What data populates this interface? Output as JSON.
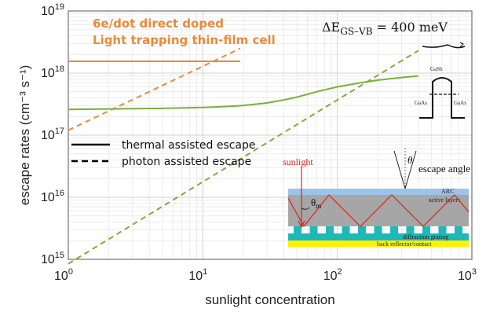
{
  "chart_data": {
    "type": "line",
    "xlabel": "sunlight concentration",
    "ylabel": "escape rates (cm⁻³ s⁻¹)",
    "xscale": "log",
    "yscale": "log",
    "xlim": [
      1,
      1000
    ],
    "ylim": [
      1000000000000000.0,
      1e+19
    ],
    "x_ticks": [
      1,
      10,
      100,
      1000
    ],
    "y_ticks": [
      1000000000000000.0,
      1e+16,
      1e+17,
      1e+18,
      1e+19
    ],
    "x_tick_labels": [
      {
        "base": "10",
        "exp": "0"
      },
      {
        "base": "10",
        "exp": "1"
      },
      {
        "base": "10",
        "exp": "2"
      },
      {
        "base": "10",
        "exp": "3"
      }
    ],
    "y_tick_labels": [
      {
        "base": "10",
        "exp": "15"
      },
      {
        "base": "10",
        "exp": "16"
      },
      {
        "base": "10",
        "exp": "17"
      },
      {
        "base": "10",
        "exp": "18"
      },
      {
        "base": "10",
        "exp": "19"
      }
    ],
    "grid": true,
    "series": [
      {
        "style": "solid",
        "color": "#E98A3A",
        "x": [
          1,
          19
        ],
        "y": [
          1.55e+18,
          1.55e+18
        ]
      },
      {
        "style": "dashed",
        "color": "#E98A3A",
        "x": [
          1,
          19
        ],
        "y": [
          1.2e+17,
          2.5e+18
        ]
      },
      {
        "style": "solid",
        "color": "#7DAF3A",
        "x": [
          1,
          2,
          5,
          10,
          15,
          20,
          30,
          40,
          50,
          70,
          100,
          150,
          200,
          300,
          400
        ],
        "y": [
          2.6e+17,
          2.65e+17,
          2.7e+17,
          2.8e+17,
          2.9e+17,
          3e+17,
          3.3e+17,
          3.7e+17,
          4.1e+17,
          5e+17,
          6e+17,
          7e+17,
          7.7e+17,
          8.5e+17,
          9e+17
        ]
      },
      {
        "style": "dashed",
        "color": "#7DAF3A",
        "x": [
          1,
          400
        ],
        "y": [
          850000000000000.0,
          2.3e+18
        ]
      }
    ],
    "legend": {
      "placement": "left-middle",
      "entries": [
        {
          "label": "thermal assisted escape",
          "style": "solid"
        },
        {
          "label": "photon assisted escape",
          "style": "dashed"
        }
      ]
    },
    "annotations": {
      "line1": "6e/dot direct doped",
      "line2": "Light trapping thin-film cell",
      "energy_main": "ΔE",
      "energy_sub": "GS–VB",
      "energy_rest": " = 400 meV"
    },
    "inset_band": {
      "labels": [
        "GaSb",
        "GaAs",
        "GaAs"
      ]
    },
    "inset_cell": {
      "sunlight": "sunlight",
      "theta_m": "θ",
      "theta_m_sub": "m",
      "theta": "θ",
      "escape_angle": "escape angle",
      "layers": [
        "ARC",
        "active layers",
        "diffraction grating",
        "back reflector/contact"
      ],
      "colors": {
        "arc": "#9DC3E6",
        "active": "#A6A6A6",
        "grating": "#1FB8B8",
        "reflector": "#FFF200",
        "rays": "#D9261C"
      }
    }
  }
}
